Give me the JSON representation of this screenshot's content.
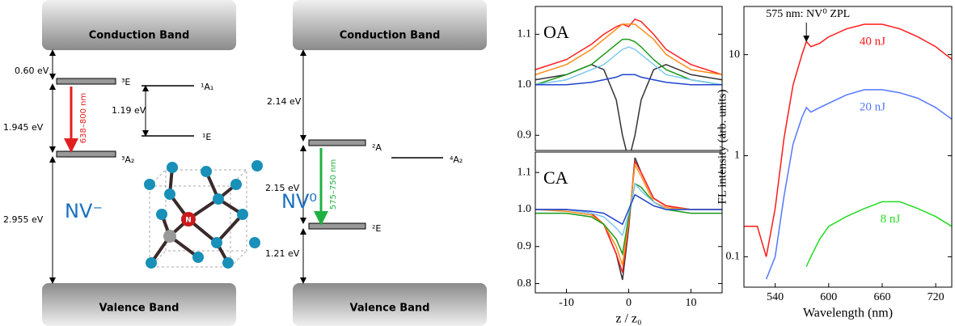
{
  "diagram": {
    "nv_minus": {
      "conduction_band": "Conduction Band",
      "valence_band": "Valence Band",
      "name": "NV⁻",
      "levels": {
        "e3": "³E",
        "a2_3": "³A₂",
        "a1_1": "¹A₁",
        "e1": "¹E"
      },
      "energies": {
        "top": "0.60 eV",
        "mid": "1.945 eV",
        "bottom": "2.955 eV",
        "singlet": "1.19 eV"
      },
      "transition": "638–800 nm",
      "atom": "N"
    },
    "nv_zero": {
      "conduction_band": "Conduction Band",
      "valence_band": "Valence Band",
      "name": "NV⁰",
      "levels": {
        "a2": "²A",
        "e2": "²E",
        "a4_2": "⁴A₂"
      },
      "energies": {
        "top": "2.14 eV",
        "mid": "2.15 eV",
        "bottom": "1.21 eV"
      },
      "transition": "575–750 nm"
    }
  },
  "chart_data": [
    {
      "type": "line",
      "title": "OA",
      "x": [
        -15,
        -10,
        -6,
        -4,
        -2,
        -1,
        0,
        1,
        2,
        4,
        6,
        10,
        15
      ],
      "xlim": [
        -15,
        15
      ],
      "ylim": [
        0.87,
        1.155
      ],
      "yticks": [
        0.9,
        {
          "value": 1,
          "label": "1.0"
        },
        1.1
      ],
      "series": [
        {
          "color": "#333333",
          "values": [
            1.01,
            1.02,
            1.04,
            1.03,
            0.97,
            0.9,
            0.85,
            0.9,
            0.97,
            1.03,
            1.04,
            1.02,
            1.01
          ]
        },
        {
          "color": "#ff2020",
          "values": [
            1.03,
            1.05,
            1.08,
            1.1,
            1.115,
            1.12,
            1.115,
            1.13,
            1.125,
            1.1,
            1.07,
            1.04,
            1.02
          ]
        },
        {
          "color": "#ff8c1a",
          "values": [
            1.02,
            1.04,
            1.07,
            1.09,
            1.11,
            1.12,
            1.12,
            1.12,
            1.11,
            1.09,
            1.06,
            1.03,
            1.02
          ]
        },
        {
          "color": "#1a9a1a",
          "values": [
            1.0,
            1.02,
            1.04,
            1.06,
            1.08,
            1.09,
            1.09,
            1.085,
            1.075,
            1.05,
            1.03,
            1.01,
            1.0
          ]
        },
        {
          "color": "#7ec8f0",
          "values": [
            1.0,
            1.01,
            1.03,
            1.04,
            1.06,
            1.07,
            1.075,
            1.07,
            1.06,
            1.04,
            1.02,
            1.01,
            1.0
          ]
        },
        {
          "color": "#2244cc",
          "values": [
            1.0,
            1.0,
            1.005,
            1.01,
            1.015,
            1.02,
            1.02,
            1.02,
            1.015,
            1.01,
            1.005,
            1.0,
            1.0
          ]
        }
      ]
    },
    {
      "type": "line",
      "title": "CA",
      "x": [
        -15,
        -10,
        -6,
        -4,
        -2,
        -1,
        0,
        1,
        2,
        4,
        6,
        10,
        15
      ],
      "xlim": [
        -15,
        15
      ],
      "ylim": [
        0.775,
        1.155
      ],
      "xticks": [
        -10,
        0,
        10
      ],
      "yticks": [
        0.8,
        0.9,
        {
          "value": 1,
          "label": "1.0"
        },
        1.1
      ],
      "xlabel": "z / z₀",
      "series": [
        {
          "color": "#333333",
          "values": [
            1.0,
            1.0,
            0.99,
            0.96,
            0.88,
            0.81,
            0.95,
            1.14,
            1.1,
            1.03,
            1.01,
            1.0,
            1.0
          ]
        },
        {
          "color": "#ff2020",
          "values": [
            1.0,
            1.0,
            0.99,
            0.96,
            0.88,
            0.83,
            0.96,
            1.13,
            1.1,
            1.03,
            1.01,
            1.0,
            1.0
          ]
        },
        {
          "color": "#ff8c1a",
          "values": [
            1.0,
            0.995,
            0.985,
            0.96,
            0.9,
            0.85,
            0.97,
            1.12,
            1.09,
            1.02,
            1.005,
            1.0,
            1.0
          ]
        },
        {
          "color": "#1a9a1a",
          "values": [
            0.99,
            0.99,
            0.98,
            0.96,
            0.92,
            0.88,
            0.98,
            1.07,
            1.06,
            1.02,
            1.0,
            0.99,
            0.99
          ]
        },
        {
          "color": "#7ec8f0",
          "values": [
            1.0,
            1.0,
            0.99,
            0.98,
            0.95,
            0.93,
            0.99,
            1.07,
            1.05,
            1.02,
            1.0,
            1.0,
            1.0
          ]
        },
        {
          "color": "#2244cc",
          "values": [
            1.0,
            1.0,
            0.995,
            0.99,
            0.97,
            0.96,
            1.0,
            1.04,
            1.03,
            1.01,
            1.0,
            1.0,
            1.0
          ]
        }
      ]
    },
    {
      "type": "line",
      "log_y": true,
      "x": [
        505,
        520,
        530,
        540,
        550,
        560,
        570,
        575,
        580,
        590,
        600,
        620,
        640,
        660,
        680,
        700,
        720,
        738
      ],
      "xlim": [
        505,
        738
      ],
      "ylim": [
        0.05,
        30
      ],
      "xticks": [
        540,
        600,
        660,
        720
      ],
      "yticks": [
        0.1,
        1,
        10
      ],
      "xlabel": "Wavelength (nm)",
      "ylabel": "FL intensity (arb. units)",
      "annotation": {
        "text": "575 nm: NV⁰ ZPL",
        "x": 575
      },
      "series": [
        {
          "name": "40 nJ",
          "color": "#ff1a1a",
          "values": [
            0.2,
            0.2,
            0.1,
            0.3,
            1.5,
            5,
            10,
            13.5,
            12,
            13,
            15,
            18,
            20,
            20,
            18,
            15,
            12,
            9
          ]
        },
        {
          "name": "20 nJ",
          "color": "#5577ff",
          "values": [
            null,
            null,
            0.06,
            0.1,
            0.4,
            1.3,
            2.4,
            3,
            2.7,
            3,
            3.3,
            4,
            4.5,
            4.5,
            4.2,
            3.7,
            3,
            2.3
          ]
        },
        {
          "name": "8 nJ",
          "color": "#22dd22",
          "values": [
            null,
            null,
            null,
            null,
            null,
            null,
            null,
            0.08,
            0.1,
            0.15,
            0.2,
            0.25,
            0.3,
            0.35,
            0.35,
            0.3,
            0.25,
            0.2
          ]
        }
      ]
    }
  ]
}
